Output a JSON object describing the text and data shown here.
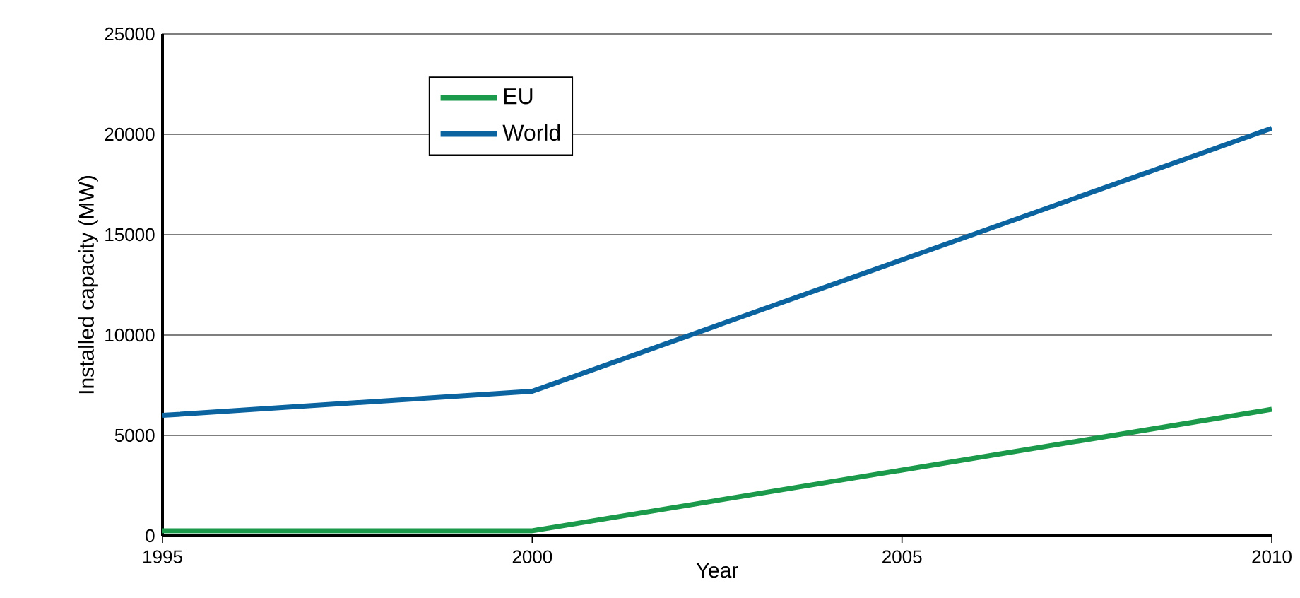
{
  "chart_data": {
    "type": "line",
    "xlabel": "Year",
    "ylabel": "Installed capacity (MW)",
    "x": [
      1995,
      2000,
      2010
    ],
    "series": [
      {
        "name": "EU",
        "color": "#1a9a4a",
        "values": [
          250,
          250,
          6300
        ]
      },
      {
        "name": "World",
        "color": "#0b64a0",
        "values": [
          6000,
          7200,
          20300
        ]
      }
    ],
    "xlim": [
      1995,
      2010
    ],
    "ylim": [
      0,
      25000
    ],
    "xticks": [
      1995,
      2000,
      2005,
      2010
    ],
    "yticks": [
      0,
      5000,
      10000,
      15000,
      20000,
      25000
    ],
    "grid": "y",
    "legend": "top left",
    "marker": "none",
    "line_style": "solid"
  }
}
